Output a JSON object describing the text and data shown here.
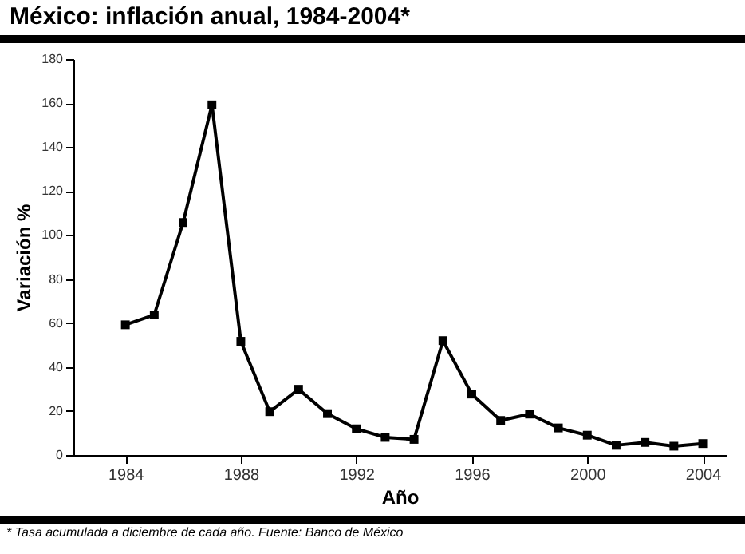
{
  "chart_data": {
    "type": "line",
    "title": "México: inflación anual, 1984-2004*",
    "xlabel": "Año",
    "ylabel": "Variación %",
    "x": [
      1984,
      1985,
      1986,
      1987,
      1988,
      1989,
      1990,
      1991,
      1992,
      1993,
      1994,
      1995,
      1996,
      1997,
      1998,
      1999,
      2000,
      2001,
      2002,
      2003,
      2004
    ],
    "series": [
      {
        "color": "#000000",
        "values": [
          59.2,
          63.7,
          105.7,
          159.2,
          51.7,
          19.7,
          29.9,
          18.8,
          11.9,
          8.0,
          7.1,
          52.0,
          27.7,
          15.7,
          18.6,
          12.3,
          9.0,
          4.4,
          5.7,
          4.0,
          5.2
        ]
      }
    ],
    "xlim": [
      1982.2,
      2004.8
    ],
    "xticks": [
      1984,
      1988,
      1992,
      1996,
      2000,
      2004
    ],
    "ylim": [
      0,
      180
    ],
    "yticks": [
      0,
      20,
      40,
      60,
      80,
      100,
      120,
      140,
      160,
      180
    ],
    "marker": "square",
    "line_style": "solid",
    "grid": false,
    "annotations": [
      "* Tasa acumulada a diciembre de cada año. Fuente: Banco de México"
    ]
  }
}
